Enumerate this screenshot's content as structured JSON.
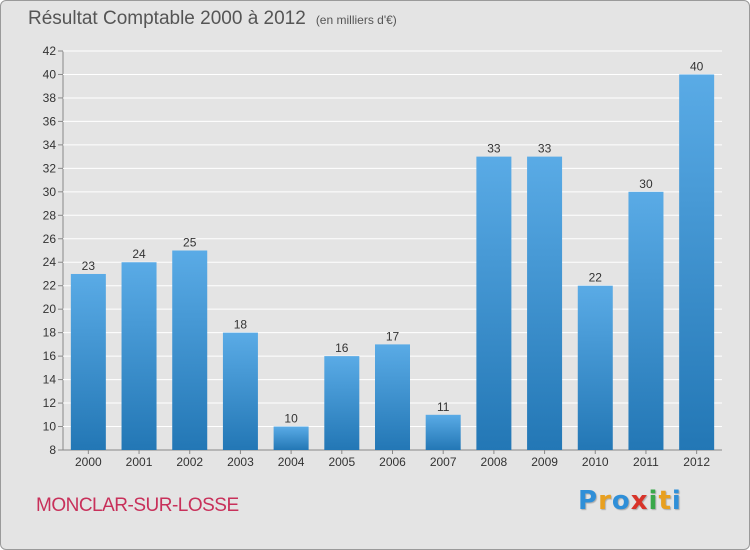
{
  "header": {
    "title": "Résultat Comptable 2000 à 2012",
    "subtitle": "(en milliers d'€)"
  },
  "footer": {
    "commune": "MONCLAR-SUR-LOSSE",
    "logo_text": "Proxiti",
    "logo_letters": [
      "P",
      "r",
      "o",
      "x",
      "i",
      "t",
      "i"
    ],
    "logo_colors": [
      "#2f8fd8",
      "#e8a020",
      "#2f8fd8",
      "#d8342a",
      "#3aa84a",
      "#e8a020",
      "#2f8fd8"
    ]
  },
  "colors": {
    "bar_light": "#5aabe6",
    "bar_dark": "#2377b5",
    "plot_bg": "#e4e4e4",
    "grid": "#ffffff",
    "axis_text": "#333333"
  },
  "chart_data": {
    "type": "bar",
    "title": "Résultat Comptable 2000 à 2012",
    "subtitle": "(en milliers d'€)",
    "categories": [
      "2000",
      "2001",
      "2002",
      "2003",
      "2004",
      "2005",
      "2006",
      "2007",
      "2008",
      "2009",
      "2010",
      "2011",
      "2012"
    ],
    "values": [
      23,
      24,
      25,
      18,
      10,
      16,
      17,
      11,
      33,
      33,
      22,
      30,
      40
    ],
    "ylim": [
      8,
      42
    ],
    "yticks": [
      8,
      10,
      12,
      14,
      16,
      18,
      20,
      22,
      24,
      26,
      28,
      30,
      32,
      34,
      36,
      38,
      40,
      42
    ],
    "grid": true,
    "xlabel": "",
    "ylabel": ""
  }
}
